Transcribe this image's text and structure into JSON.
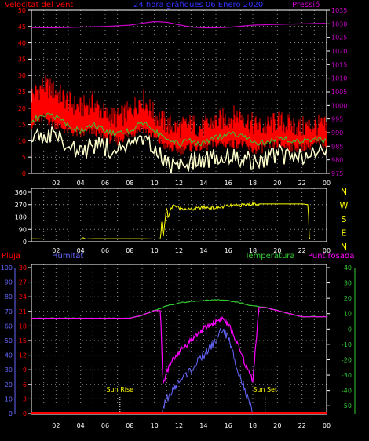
{
  "colors": {
    "wind": "#ff0000",
    "gust_band": "#ff0000",
    "wind_avg": "#33cc33",
    "wind_min": "#ffffcc",
    "pressure": "#cc00cc",
    "direction": "#ffff00",
    "rain": "#ff0000",
    "humidity": "#6666ff",
    "temperature": "#33cc33",
    "dew_point": "#ff00ff",
    "axis": "#ffffff",
    "grid": "#ffffff"
  },
  "chart_data": [
    {
      "type": "line",
      "title": "24 hora gràfiques  06 Enero 2020",
      "left_label": "Velocitat del vent",
      "right_label": "Pressió",
      "x_ticks": [
        "02",
        "04",
        "06",
        "08",
        "10",
        "12",
        "14",
        "16",
        "18",
        "20",
        "22",
        "00"
      ],
      "y_left_ticks": [
        "0",
        "5",
        "10",
        "15",
        "20",
        "25",
        "30",
        "35",
        "40",
        "45",
        "50"
      ],
      "y_left_range": [
        0,
        50
      ],
      "y_right_ticks": [
        "975",
        "980",
        "985",
        "990",
        "995",
        "1000",
        "1005",
        "1010",
        "1015",
        "1020",
        "1025",
        "1030",
        "1035"
      ],
      "y_right_range": [
        975,
        1035
      ],
      "x_range_hours": [
        0,
        24
      ],
      "series": [
        {
          "name": "Velocitat del vent",
          "x": [
            0,
            1,
            2,
            3,
            4,
            5,
            6,
            7,
            8,
            9,
            10,
            11,
            12,
            13,
            14,
            15,
            16,
            17,
            18,
            19,
            20,
            21,
            22,
            23,
            24
          ],
          "gust_high": [
            24,
            27,
            25,
            22,
            20,
            22,
            18,
            17,
            19,
            23,
            18,
            15,
            14,
            15,
            14,
            16,
            17,
            18,
            15,
            14,
            16,
            15,
            14,
            15,
            14
          ],
          "gust_low": [
            15,
            17,
            15,
            13,
            12,
            13,
            11,
            10,
            12,
            14,
            11,
            8,
            7,
            8,
            8,
            9,
            9,
            9,
            7,
            8,
            9,
            8,
            8,
            9,
            9
          ]
        },
        {
          "name": "wind_avg",
          "x": [
            0,
            1,
            2,
            3,
            4,
            5,
            6,
            7,
            8,
            9,
            10,
            11,
            12,
            13,
            14,
            15,
            16,
            17,
            18,
            19,
            20,
            21,
            22,
            23,
            24
          ],
          "values": [
            16,
            18,
            17,
            15,
            13,
            15,
            13,
            12,
            13,
            16,
            13,
            10,
            9,
            10,
            9,
            11,
            12,
            12,
            10,
            9,
            11,
            10,
            10,
            11,
            10
          ]
        },
        {
          "name": "wind_min",
          "x": [
            0,
            1,
            2,
            3,
            4,
            5,
            6,
            7,
            8,
            9,
            10,
            11,
            12,
            13,
            14,
            15,
            16,
            17,
            18,
            19,
            20,
            21,
            22,
            23,
            24
          ],
          "values": [
            11,
            12,
            11,
            9,
            6,
            9,
            8,
            7,
            8,
            10,
            7,
            3,
            2,
            4,
            4,
            5,
            6,
            5,
            3,
            4,
            6,
            5,
            5,
            6,
            7
          ]
        },
        {
          "name": "Pressió",
          "x": [
            0,
            2,
            4,
            6,
            8,
            9,
            10,
            11,
            12,
            13,
            14,
            15,
            16,
            17,
            18,
            20,
            22,
            24
          ],
          "values": [
            1028.6,
            1028.5,
            1028.8,
            1029.0,
            1029.5,
            1030.2,
            1030.8,
            1030.6,
            1029.6,
            1028.8,
            1028.5,
            1028.5,
            1028.7,
            1029.1,
            1029.5,
            1029.8,
            1030.0,
            1030.2
          ]
        }
      ]
    },
    {
      "type": "line",
      "x_ticks": [
        "02",
        "04",
        "06",
        "08",
        "10",
        "12",
        "14",
        "16",
        "18",
        "20",
        "22",
        "00"
      ],
      "y_ticks": [
        "0",
        "90",
        "180",
        "270",
        "360"
      ],
      "y_range": [
        0,
        360
      ],
      "direction_labels": [
        "N",
        "W",
        "S",
        "E",
        "N"
      ],
      "series": [
        {
          "name": "direction",
          "x": [
            0,
            1,
            2,
            3,
            4,
            4.2,
            4.4,
            5,
            6,
            7,
            8,
            9,
            10,
            10.5,
            10.6,
            10.7,
            11,
            11.1,
            11.5,
            12,
            13,
            14,
            15,
            16,
            17,
            18,
            19,
            20,
            21,
            22,
            22.5,
            22.6,
            24
          ],
          "values": [
            22,
            20,
            20,
            20,
            20,
            30,
            20,
            22,
            22,
            22,
            22,
            22,
            20,
            20,
            150,
            20,
            260,
            180,
            270,
            245,
            235,
            250,
            245,
            260,
            265,
            275,
            275,
            275,
            275,
            275,
            270,
            20,
            20
          ]
        }
      ]
    },
    {
      "type": "line",
      "left_label": "Pluja",
      "left_label_2": "Humitat",
      "right_label": "Temperatura",
      "right_label_2": "Punt rosada",
      "x_ticks": [
        "02",
        "04",
        "06",
        "08",
        "10",
        "12",
        "14",
        "16",
        "18",
        "20",
        "22",
        "00"
      ],
      "y_humidity_ticks": [
        "0",
        "10",
        "20",
        "30",
        "40",
        "50",
        "60",
        "70",
        "80",
        "90",
        "100"
      ],
      "y_rain_ticks": [
        "0",
        "3",
        "6",
        "9",
        "12",
        "15",
        "18",
        "21",
        "24",
        "27",
        "30"
      ],
      "y_temp_ticks": [
        "-50",
        "-40",
        "-30",
        "-20",
        "-10",
        "0",
        "10",
        "20",
        "30",
        "40"
      ],
      "y_temp_range": [
        -55,
        40
      ],
      "annotations": [
        "Sun Rise",
        "Sun Set"
      ],
      "sunrise_hour": 7.2,
      "sunset_hour": 19.0,
      "series": [
        {
          "name": "Temperatura",
          "x": [
            0,
            2,
            4,
            6,
            8,
            9,
            10,
            11,
            12,
            13,
            14,
            15,
            16,
            17,
            18,
            19,
            20,
            21,
            22,
            23,
            24
          ],
          "values": [
            7,
            7,
            7,
            7,
            7,
            9,
            12,
            15,
            17,
            18,
            18.5,
            19,
            18.5,
            17,
            15,
            14,
            12,
            10,
            8,
            8,
            8
          ]
        },
        {
          "name": "Punt rosada",
          "x": [
            0,
            2,
            4,
            6,
            8,
            9,
            10,
            10.5,
            10.7,
            11,
            11.5,
            12,
            13,
            14,
            15,
            15.5,
            16,
            16.5,
            17,
            17.5,
            18,
            18.5,
            19,
            20,
            21,
            22,
            23,
            24
          ],
          "values": [
            7,
            7,
            7,
            7,
            7,
            9,
            12,
            12,
            -37,
            -28,
            -20,
            -15,
            -7,
            0,
            5,
            7,
            3,
            -5,
            -15,
            -25,
            -33,
            14,
            14,
            12,
            10,
            8,
            8,
            8
          ]
        },
        {
          "name": "Humitat",
          "x": [
            0,
            10,
            10.6,
            11,
            12,
            13,
            14,
            15,
            15.5,
            16,
            16.5,
            17,
            17.5,
            18,
            24
          ],
          "values": [
            0,
            0,
            0,
            10,
            22,
            30,
            40,
            50,
            58,
            52,
            38,
            25,
            12,
            0,
            0
          ]
        },
        {
          "name": "Pluja",
          "x": [
            0,
            24
          ],
          "values": [
            0,
            0
          ]
        }
      ]
    }
  ]
}
